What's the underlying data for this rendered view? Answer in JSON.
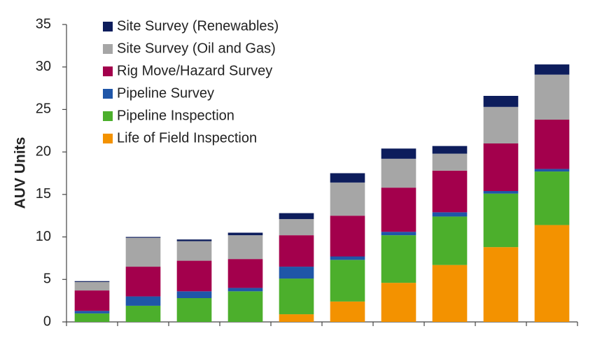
{
  "chart_data": {
    "type": "stacked_bar",
    "ylabel": "AUV Units",
    "categories": [
      null,
      null,
      null,
      null,
      null,
      null,
      null,
      null,
      null,
      null
    ],
    "ylim": [
      0,
      35
    ],
    "yticks": [
      0,
      5,
      10,
      15,
      20,
      25,
      30,
      35
    ],
    "legend": "upper left",
    "series": [
      {
        "name": "Life of Field Inspection",
        "color": "#f39200",
        "values": [
          0,
          0,
          0,
          0,
          0.9,
          2.4,
          4.6,
          6.7,
          8.8,
          11.4
        ]
      },
      {
        "name": "Pipeline Inspection",
        "color": "#4caf2c",
        "values": [
          1.0,
          1.9,
          2.8,
          3.6,
          4.2,
          4.9,
          5.6,
          5.7,
          6.3,
          6.3
        ]
      },
      {
        "name": "Pipeline Survey",
        "color": "#1f56a8",
        "values": [
          0.3,
          1.1,
          0.8,
          0.4,
          1.4,
          0.4,
          0.4,
          0.5,
          0.3,
          0.3
        ]
      },
      {
        "name": "Rig Move/Hazard Survey",
        "color": "#a3004c",
        "values": [
          2.4,
          3.5,
          3.6,
          3.4,
          3.7,
          4.8,
          5.2,
          4.9,
          5.6,
          5.8
        ]
      },
      {
        "name": "Site Survey (Oil and Gas)",
        "color": "#a6a6a6",
        "values": [
          1.0,
          3.4,
          2.3,
          2.8,
          1.9,
          3.9,
          3.4,
          2.0,
          4.3,
          5.3
        ]
      },
      {
        "name": "Site Survey (Renewables)",
        "color": "#0d1d5c",
        "values": [
          0.1,
          0.1,
          0.2,
          0.3,
          0.7,
          1.1,
          1.2,
          0.9,
          1.3,
          1.2
        ]
      }
    ]
  }
}
